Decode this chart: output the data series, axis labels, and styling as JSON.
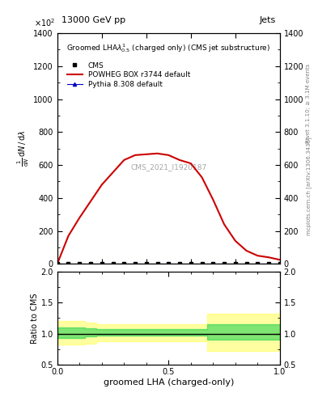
{
  "title_top": "13000 GeV pp",
  "title_right": "Jets",
  "plot_title": "Groomed LHA$\\lambda^{1}_{0.5}$ (charged only) (CMS jet substructure)",
  "cms_label": "CMS_2021_I1920187",
  "xlabel": "groomed LHA (charged-only)",
  "ylabel_main": "$\\frac{1}{\\mathrm{d}N}\\,/\\,\\mathrm{d}\\lambda$",
  "ylabel_ratio": "Ratio to CMS",
  "right_label_top": "Rivet 3.1.10; $\\geq$ 3.1M events",
  "right_label_bottom": "mcplots.cern.ch [arXiv:1306.3436]",
  "x_lha": [
    0.0,
    0.05,
    0.1,
    0.15,
    0.2,
    0.25,
    0.3,
    0.35,
    0.4,
    0.45,
    0.5,
    0.55,
    0.6,
    0.65,
    0.7,
    0.75,
    0.8,
    0.85,
    0.9,
    0.95,
    1.0
  ],
  "powheg_y": [
    0,
    170,
    280,
    380,
    480,
    555,
    630,
    660,
    665,
    670,
    660,
    630,
    610,
    525,
    390,
    240,
    140,
    80,
    50,
    40,
    25
  ],
  "pythia_y": [
    0,
    0,
    0,
    0,
    0,
    0,
    0,
    0,
    0,
    0,
    0,
    0,
    0,
    0,
    0,
    0,
    0,
    0,
    0,
    0,
    0
  ],
  "cms_y": [
    0,
    0,
    0,
    0,
    0,
    0,
    0,
    0,
    0,
    0,
    0,
    0,
    0,
    0,
    0,
    0,
    0,
    0,
    0,
    0,
    0
  ],
  "ratio_x": [
    0.0,
    0.05,
    0.1,
    0.15,
    0.2,
    0.25,
    0.3,
    0.35,
    0.4,
    0.45,
    0.5,
    0.55,
    0.6,
    0.65,
    0.7,
    0.75,
    0.8,
    0.85,
    0.9,
    0.95,
    1.0
  ],
  "ratio_green_lo": [
    0.93,
    0.93,
    0.93,
    0.95,
    0.97,
    0.97,
    0.97,
    0.97,
    0.97,
    0.97,
    0.97,
    0.97,
    0.97,
    0.97,
    0.9,
    0.9,
    0.9,
    0.9,
    0.9,
    0.9,
    0.9
  ],
  "ratio_green_hi": [
    1.1,
    1.1,
    1.1,
    1.08,
    1.07,
    1.07,
    1.07,
    1.07,
    1.07,
    1.07,
    1.07,
    1.07,
    1.07,
    1.07,
    1.15,
    1.15,
    1.15,
    1.15,
    1.15,
    1.15,
    1.15
  ],
  "ratio_yellow_lo": [
    0.82,
    0.82,
    0.82,
    0.84,
    0.87,
    0.87,
    0.87,
    0.87,
    0.87,
    0.87,
    0.87,
    0.87,
    0.87,
    0.87,
    0.72,
    0.72,
    0.72,
    0.72,
    0.72,
    0.72,
    0.72
  ],
  "ratio_yellow_hi": [
    1.2,
    1.2,
    1.2,
    1.18,
    1.15,
    1.15,
    1.15,
    1.15,
    1.15,
    1.15,
    1.15,
    1.15,
    1.15,
    1.15,
    1.32,
    1.32,
    1.32,
    1.32,
    1.32,
    1.32,
    1.32
  ],
  "ylim_main": [
    0,
    1400
  ],
  "ylim_ratio": [
    0.5,
    2.0
  ],
  "scale_factor": 100,
  "powheg_color": "#cc0000",
  "pythia_color": "#0000cc",
  "cms_color": "#000000",
  "green_color": "#00cc44",
  "yellow_color": "#ffff44",
  "green_alpha": 0.5,
  "yellow_alpha": 0.5
}
